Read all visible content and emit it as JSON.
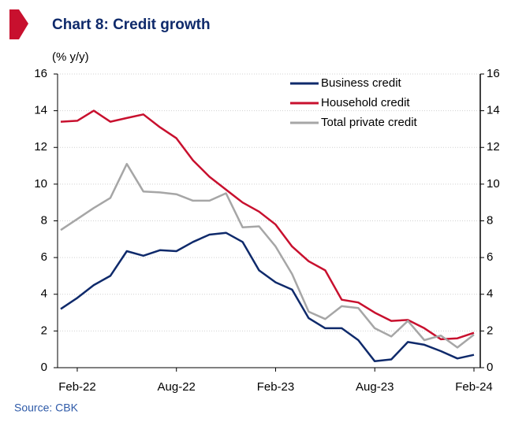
{
  "chart_data": {
    "type": "line",
    "title": "Chart 8: Credit growth",
    "y_label": "(% y/y)",
    "source": "Source:  CBK",
    "categories": [
      null,
      "Feb-22",
      null,
      null,
      null,
      null,
      null,
      "Aug-22",
      null,
      null,
      null,
      null,
      null,
      "Feb-23",
      null,
      null,
      null,
      null,
      null,
      "Aug-23",
      null,
      null,
      null,
      null,
      null,
      "Feb-24"
    ],
    "series": [
      {
        "name": "Business credit",
        "color": "#0f2a6b",
        "values": [
          3.2,
          3.8,
          4.5,
          5.0,
          6.35,
          6.1,
          6.4,
          6.35,
          6.85,
          7.25,
          7.35,
          6.85,
          5.3,
          4.65,
          4.25,
          2.7,
          2.15,
          2.15,
          1.5,
          0.35,
          0.45,
          1.4,
          1.25,
          0.9,
          0.5,
          0.7
        ]
      },
      {
        "name": "Household credit",
        "color": "#c8102e",
        "values": [
          13.4,
          13.45,
          14.0,
          13.4,
          13.6,
          13.8,
          13.1,
          12.5,
          11.3,
          10.4,
          9.7,
          9.0,
          8.5,
          7.8,
          6.6,
          5.8,
          5.3,
          3.7,
          3.55,
          3.0,
          2.55,
          2.6,
          2.15,
          1.55,
          1.6,
          1.9
        ]
      },
      {
        "name": "Total private credit",
        "color": "#a6a6a6",
        "values": [
          7.5,
          8.1,
          8.7,
          9.25,
          11.1,
          9.6,
          9.55,
          9.45,
          9.1,
          9.1,
          9.5,
          7.65,
          7.7,
          6.6,
          5.1,
          3.05,
          2.65,
          3.35,
          3.25,
          2.15,
          1.7,
          2.55,
          1.5,
          1.75,
          1.1,
          1.8
        ]
      }
    ],
    "ylim": [
      0,
      16
    ],
    "yticks": [
      0,
      2,
      4,
      6,
      8,
      10,
      12,
      14,
      16
    ],
    "grid": true,
    "legend": "top-right"
  }
}
